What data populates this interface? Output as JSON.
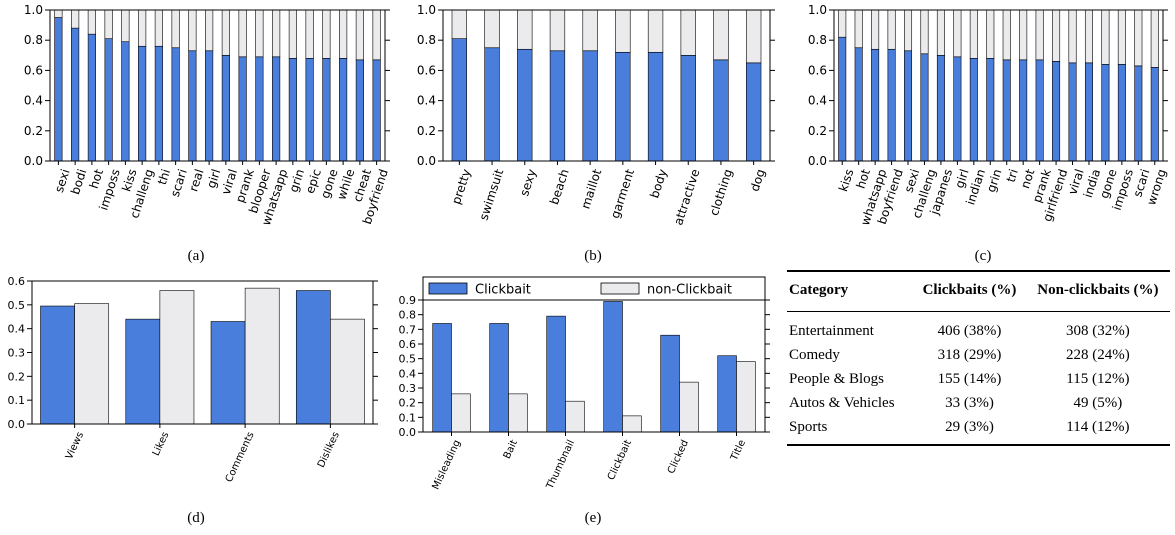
{
  "colors": {
    "clickbait": "#4a7edc",
    "non_clickbait": "#ebebee",
    "edge": "#000000"
  },
  "captions": {
    "a": "(a)",
    "b": "(b)",
    "c": "(c)",
    "d": "(d)",
    "e": "(e)"
  },
  "chart_data": [
    {
      "id": "a",
      "type": "bar",
      "stacked": true,
      "categories": [
        "sexi",
        "bodi",
        "hot",
        "imposs",
        "kiss",
        "challeng",
        "thi",
        "scari",
        "real",
        "girl",
        "viral",
        "prank",
        "blooper",
        "whatsapp",
        "grin",
        "epic",
        "gone",
        "while",
        "cheat",
        "boyfriend"
      ],
      "series": [
        {
          "values": [
            0.95,
            0.88,
            0.84,
            0.81,
            0.79,
            0.76,
            0.76,
            0.75,
            0.73,
            0.73,
            0.7,
            0.69,
            0.69,
            0.69,
            0.68,
            0.68,
            0.68,
            0.68,
            0.67,
            0.67
          ]
        },
        {
          "values": [
            0.05,
            0.12,
            0.16,
            0.19,
            0.21,
            0.24,
            0.24,
            0.25,
            0.27,
            0.27,
            0.3,
            0.31,
            0.31,
            0.31,
            0.32,
            0.32,
            0.32,
            0.32,
            0.33,
            0.33
          ]
        }
      ],
      "ylim": [
        0,
        1.0
      ],
      "yticks": [
        "0.0",
        "0.2",
        "0.4",
        "0.6",
        "0.8",
        "1.0"
      ]
    },
    {
      "id": "b",
      "type": "bar",
      "stacked": true,
      "categories": [
        "pretty",
        "swimsuit",
        "sexy",
        "beach",
        "maillot",
        "garment",
        "body",
        "attractive",
        "clothing",
        "dog"
      ],
      "series": [
        {
          "values": [
            0.81,
            0.75,
            0.74,
            0.73,
            0.73,
            0.72,
            0.72,
            0.7,
            0.67,
            0.65
          ]
        },
        {
          "values": [
            0.19,
            0.25,
            0.26,
            0.27,
            0.27,
            0.28,
            0.28,
            0.3,
            0.33,
            0.35
          ]
        }
      ],
      "ylim": [
        0,
        1.0
      ],
      "yticks": [
        "0.0",
        "0.2",
        "0.4",
        "0.6",
        "0.8",
        "1.0"
      ]
    },
    {
      "id": "c",
      "type": "bar",
      "stacked": true,
      "categories": [
        "kiss",
        "hot",
        "whatsapp",
        "boyfriend",
        "sexi",
        "challeng",
        "japanes",
        "girl",
        "indian",
        "grin",
        "tri",
        "not",
        "prank",
        "girlfriend",
        "viral",
        "india",
        "gone",
        "imposs",
        "scari",
        "wrong"
      ],
      "series": [
        {
          "values": [
            0.82,
            0.75,
            0.74,
            0.74,
            0.73,
            0.71,
            0.7,
            0.69,
            0.68,
            0.68,
            0.67,
            0.67,
            0.67,
            0.66,
            0.65,
            0.65,
            0.64,
            0.64,
            0.63,
            0.62
          ]
        },
        {
          "values": [
            0.18,
            0.25,
            0.26,
            0.26,
            0.27,
            0.29,
            0.3,
            0.31,
            0.32,
            0.32,
            0.33,
            0.33,
            0.33,
            0.34,
            0.35,
            0.35,
            0.36,
            0.36,
            0.37,
            0.38
          ]
        }
      ],
      "ylim": [
        0,
        1.0
      ],
      "yticks": [
        "0.0",
        "0.2",
        "0.4",
        "0.6",
        "0.8",
        "1.0"
      ]
    },
    {
      "id": "d",
      "type": "bar",
      "grouped": true,
      "categories": [
        "Views",
        "Likes",
        "Comments",
        "Dislikes"
      ],
      "series": [
        {
          "values": [
            0.495,
            0.44,
            0.43,
            0.56
          ]
        },
        {
          "values": [
            0.505,
            0.56,
            0.57,
            0.44
          ]
        }
      ],
      "ylim": [
        0,
        0.6
      ],
      "yticks": [
        "0.0",
        "0.1",
        "0.2",
        "0.3",
        "0.4",
        "0.5",
        "0.6"
      ]
    },
    {
      "id": "e",
      "type": "bar",
      "grouped": true,
      "categories": [
        "Misleading",
        "Bait",
        "Thumbnail",
        "Clickbait",
        "Clicked",
        "Title"
      ],
      "series": [
        {
          "name": "Clickbait",
          "values": [
            0.74,
            0.74,
            0.79,
            0.89,
            0.66,
            0.52
          ]
        },
        {
          "name": "non-Clickbait",
          "values": [
            0.26,
            0.26,
            0.21,
            0.11,
            0.34,
            0.48
          ]
        }
      ],
      "ylim": [
        0,
        0.9
      ],
      "yticks": [
        "0.0",
        "0.1",
        "0.2",
        "0.3",
        "0.4",
        "0.5",
        "0.6",
        "0.7",
        "0.8",
        "0.9"
      ],
      "legend": "top"
    },
    {
      "id": "table",
      "type": "table",
      "columns": [
        "Category",
        "Clickbaits (%)",
        "Non-clickbaits (%)"
      ],
      "rows": [
        [
          "Entertainment",
          "406 (38%)",
          "308 (32%)"
        ],
        [
          "Comedy",
          "318 (29%)",
          "228 (24%)"
        ],
        [
          "People & Blogs",
          "155 (14%)",
          "115 (12%)"
        ],
        [
          "Autos & Vehicles",
          "33 (3%)",
          "49 (5%)"
        ],
        [
          "Sports",
          "29 (3%)",
          "114 (12%)"
        ]
      ]
    }
  ]
}
